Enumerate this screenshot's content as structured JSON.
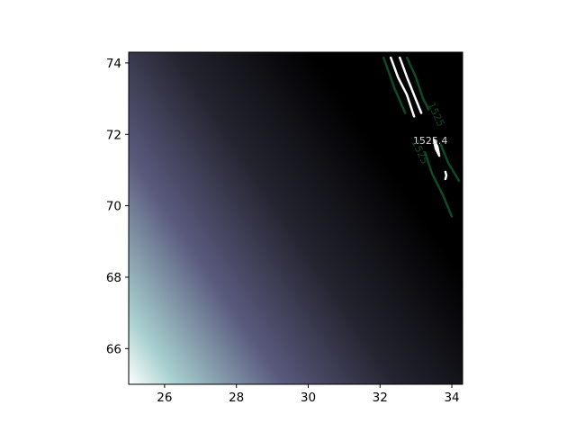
{
  "chart_data": {
    "type": "heatmap",
    "subtype": "filled gradient with contour lines",
    "title": "",
    "xlabel": "",
    "ylabel": "",
    "xlim": [
      25.0,
      34.3
    ],
    "ylim": [
      65.0,
      74.3
    ],
    "x_ticks": [
      26,
      28,
      30,
      32,
      34
    ],
    "y_ticks": [
      66,
      68,
      70,
      72,
      74
    ],
    "x_tick_labels": [
      "26",
      "28",
      "30",
      "32",
      "34"
    ],
    "y_tick_labels": [
      "66",
      "68",
      "70",
      "72",
      "74"
    ],
    "colormap": "bone",
    "colormap_stops": [
      "#ffffff",
      "#a7cfcf",
      "#5a5a7e",
      "#242430",
      "#000000"
    ],
    "gradient_corner_low": {
      "x": 25.0,
      "y": 65.0
    },
    "gradient_corner_high": {
      "x": 34.3,
      "y": 74.3
    },
    "grid": false,
    "contours": [
      {
        "level_label": "1525.4",
        "color": "#ffffff",
        "paths": [
          [
            [
              32.3,
              74.15
            ],
            [
              32.5,
              73.6
            ],
            [
              32.75,
              73.1
            ],
            [
              32.95,
              72.5
            ]
          ],
          [
            [
              32.55,
              74.15
            ],
            [
              32.75,
              73.6
            ],
            [
              32.95,
              73.1
            ],
            [
              33.15,
              72.6
            ]
          ],
          [
            [
              33.5,
              71.85
            ],
            [
              33.55,
              71.6
            ],
            [
              33.65,
              71.4
            ],
            [
              33.6,
              71.65
            ],
            [
              33.5,
              71.85
            ]
          ],
          [
            [
              33.82,
              70.95
            ],
            [
              33.85,
              70.85
            ],
            [
              33.82,
              70.75
            ]
          ]
        ]
      },
      {
        "level_label": "1525",
        "color": "#0d4a28",
        "paths": [
          [
            [
              32.1,
              74.15
            ],
            [
              32.4,
              73.3
            ],
            [
              32.7,
              72.6
            ]
          ],
          [
            [
              32.75,
              74.15
            ],
            [
              33.0,
              73.6
            ],
            [
              33.2,
              73.0
            ],
            [
              33.35,
              72.7
            ]
          ],
          [
            [
              33.25,
              71.5
            ],
            [
              33.45,
              70.9
            ],
            [
              33.75,
              70.3
            ],
            [
              34.0,
              69.7
            ]
          ],
          [
            [
              33.7,
              71.7
            ],
            [
              33.9,
              71.2
            ],
            [
              34.2,
              70.7
            ]
          ]
        ]
      }
    ],
    "contour_labels": [
      {
        "text": "1525.4",
        "x": 33.4,
        "y": 71.8,
        "color": "#d8d8d8",
        "rotation": 0
      },
      {
        "text": "1525",
        "x": 33.55,
        "y": 72.55,
        "color": "#0d4a28",
        "rotation": 65
      },
      {
        "text": "1525",
        "x": 33.1,
        "y": 71.5,
        "color": "#0d4a28",
        "rotation": 65
      }
    ]
  }
}
